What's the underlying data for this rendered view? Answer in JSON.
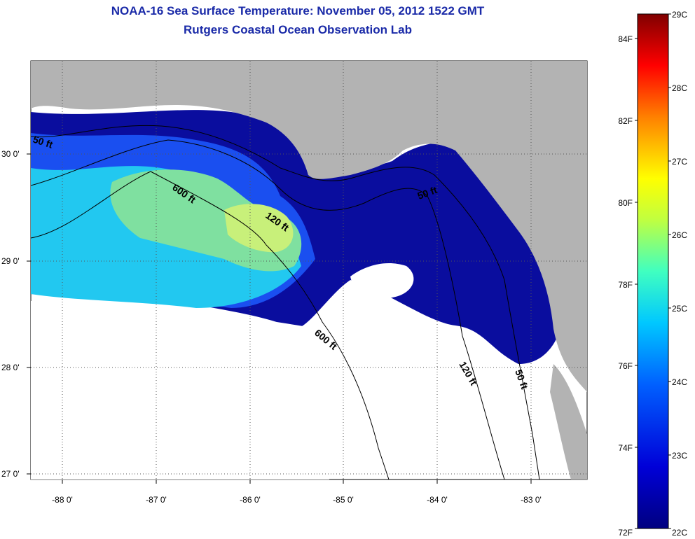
{
  "title": {
    "line1": "NOAA-16 Sea Surface Temperature:  November 05, 2012 1522 GMT",
    "line2": "Rutgers Coastal Ocean Observation Lab"
  },
  "map": {
    "lat_ticks": [
      "30 0'",
      "29 0'",
      "28 0'",
      "27 0'"
    ],
    "lon_ticks": [
      "-88 0'",
      "-87 0'",
      "-86 0'",
      "-85 0'",
      "-84 0'",
      "-83 0'"
    ],
    "contour_labels": [
      "50 ft",
      "600 ft",
      "120 ft",
      "50 ft",
      "600 ft",
      "120 ft",
      "50 ft"
    ],
    "colors": {
      "land": "#b3b3b3",
      "cloud": "#ffffff",
      "dark_blue": "#0a0d9e",
      "blue": "#1a4ff0",
      "cyan": "#22c8f0",
      "green": "#7fe0a0",
      "yellow_green": "#c8f07a"
    }
  },
  "colorbar": {
    "celsius_labels": [
      "29C",
      "28C",
      "27C",
      "26C",
      "25C",
      "24C",
      "23C",
      "22C"
    ],
    "fahrenheit_labels": [
      "84F",
      "82F",
      "80F",
      "78F",
      "76F",
      "74F",
      "72F"
    ]
  }
}
